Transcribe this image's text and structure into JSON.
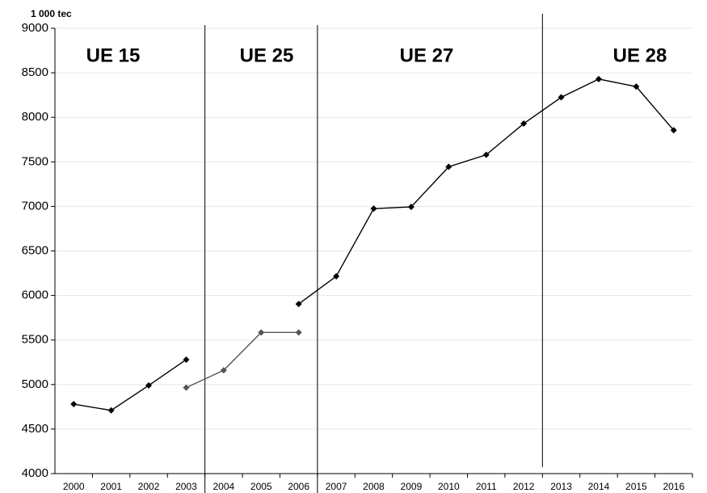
{
  "chart_data": {
    "type": "line",
    "y_label": "1 000 tec",
    "categories": [
      "2000",
      "2001",
      "2002",
      "2003",
      "2004",
      "2005",
      "2006",
      "2007",
      "2008",
      "2009",
      "2010",
      "2011",
      "2012",
      "2013",
      "2014",
      "2015",
      "2016"
    ],
    "series": [
      {
        "color": "#000000",
        "values": [
          4780,
          4710,
          4990,
          5280,
          null,
          null,
          null,
          null,
          null,
          null,
          null,
          null,
          null,
          null,
          null,
          null,
          null
        ]
      },
      {
        "color": "#555555",
        "values": [
          null,
          null,
          null,
          4965,
          5160,
          5585,
          5585,
          null,
          null,
          null,
          null,
          null,
          null,
          null,
          null,
          null,
          null
        ]
      },
      {
        "color": "#000000",
        "values": [
          null,
          null,
          null,
          null,
          null,
          null,
          5905,
          6215,
          6975,
          6995,
          7445,
          7580,
          7930,
          8225,
          8430,
          8345,
          7855
        ]
      }
    ],
    "annotations": [
      "UE 15",
      "UE 25",
      "UE 27",
      "UE 28"
    ],
    "ylim": [
      4000,
      9000
    ],
    "yticks": [
      4000,
      4500,
      5000,
      5500,
      6000,
      6500,
      7000,
      7500,
      8000,
      8500,
      9000
    ],
    "grid": true
  }
}
